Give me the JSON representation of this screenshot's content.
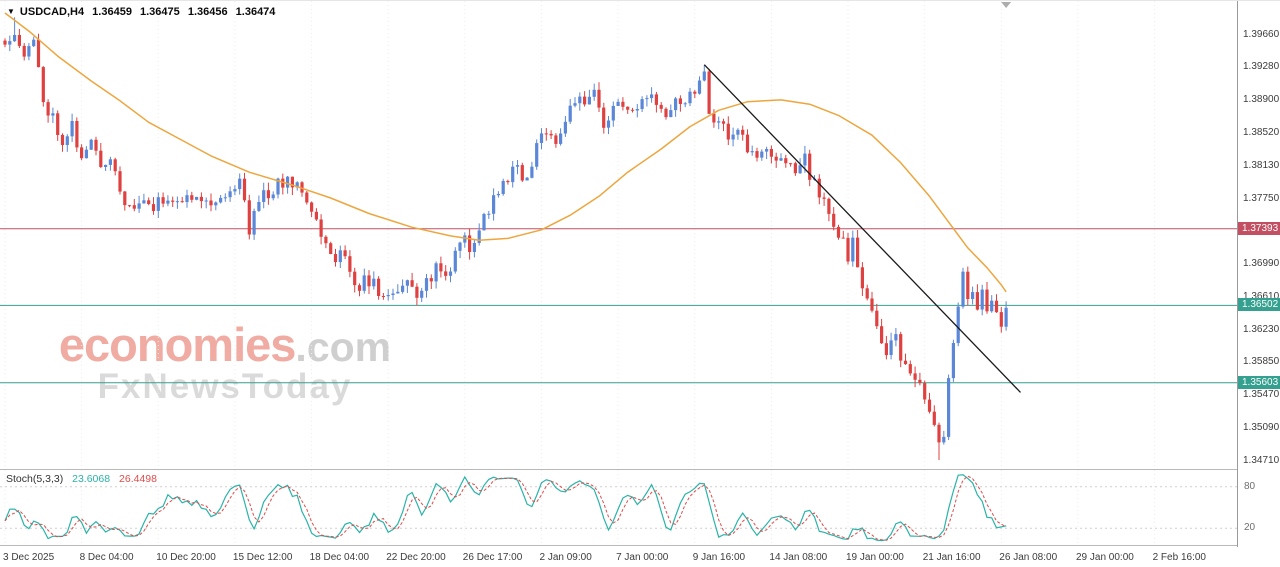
{
  "window": {
    "background": "#ffffff"
  },
  "quote_bar": {
    "dropdown_icon": "▼",
    "symbol_period": "USDCAD,H4",
    "open": "1.36459",
    "high": "1.36475",
    "low": "1.36456",
    "close": "1.36474"
  },
  "watermark": {
    "brand": "economies",
    "brand_suffix": ".com",
    "tagline": "FxNewsToday",
    "brand_color": "#f0aba2",
    "suffix_color": "#cfcfcf",
    "tagline_color": "#dadada"
  },
  "price_axis": {
    "ticks": [
      "1.39660",
      "1.39280",
      "1.38900",
      "1.38520",
      "1.38130",
      "1.37750",
      "1.36990",
      "1.36610",
      "1.36230",
      "1.35850",
      "1.35470",
      "1.35090",
      "1.34710"
    ],
    "badges": [
      {
        "label": "1.37393",
        "price": 1.37393,
        "color": "#c25062"
      },
      {
        "label": "1.36502",
        "price": 1.36502,
        "color": "#35a08f"
      },
      {
        "label": "1.35603",
        "price": 1.35603,
        "color": "#35a08f"
      }
    ]
  },
  "time_axis": {
    "labels": [
      "3 Dec 2025",
      "8 Dec 04:00",
      "10 Dec 20:00",
      "15 Dec 12:00",
      "18 Dec 04:00",
      "22 Dec 20:00",
      "26 Dec 17:00",
      "2 Jan 09:00",
      "7 Jan 00:00",
      "9 Jan 16:00",
      "14 Jan 08:00",
      "19 Jan 00:00",
      "21 Jan 16:00",
      "26 Jan 08:00",
      "29 Jan 00:00",
      "2 Feb 16:00"
    ],
    "candles_per_label": 16
  },
  "chart_data": {
    "type": "candlestick",
    "symbol": "USDCAD",
    "timeframe": "H4",
    "price_range": {
      "top": 1.4004,
      "bottom": 1.346
    },
    "candle_count": 210,
    "seed": 11,
    "noise": 0.0009,
    "up_color": "#5a87d7",
    "down_color": "#df4040",
    "ma_color": "#eda63e",
    "price_path": [
      [
        0,
        1.3958
      ],
      [
        2,
        1.3972
      ],
      [
        4,
        1.3942
      ],
      [
        6,
        1.3956
      ],
      [
        8,
        1.389
      ],
      [
        10,
        1.3868
      ],
      [
        12,
        1.3845
      ],
      [
        14,
        1.386
      ],
      [
        16,
        1.382
      ],
      [
        18,
        1.3838
      ],
      [
        20,
        1.3815
      ],
      [
        22,
        1.3824
      ],
      [
        24,
        1.3788
      ],
      [
        26,
        1.3758
      ],
      [
        28,
        1.3772
      ],
      [
        31,
        1.3762
      ],
      [
        34,
        1.3779
      ],
      [
        37,
        1.3768
      ],
      [
        40,
        1.3784
      ],
      [
        43,
        1.3768
      ],
      [
        46,
        1.3779
      ],
      [
        49,
        1.3795
      ],
      [
        51,
        1.374
      ],
      [
        53,
        1.3778
      ],
      [
        56,
        1.3784
      ],
      [
        59,
        1.3798
      ],
      [
        62,
        1.379
      ],
      [
        64,
        1.3762
      ],
      [
        66,
        1.3733
      ],
      [
        68,
        1.3704
      ],
      [
        70,
        1.3714
      ],
      [
        72,
        1.3686
      ],
      [
        74,
        1.3675
      ],
      [
        76,
        1.3681
      ],
      [
        79,
        1.3658
      ],
      [
        81,
        1.3668
      ],
      [
        84,
        1.3674
      ],
      [
        86,
        1.3663
      ],
      [
        88,
        1.368
      ],
      [
        90,
        1.3691
      ],
      [
        92,
        1.3686
      ],
      [
        94,
        1.3709
      ],
      [
        96,
        1.3726
      ],
      [
        98,
        1.3715
      ],
      [
        100,
        1.3755
      ],
      [
        102,
        1.3772
      ],
      [
        104,
        1.379
      ],
      [
        106,
        1.3813
      ],
      [
        109,
        1.3795
      ],
      [
        111,
        1.383
      ],
      [
        113,
        1.3858
      ],
      [
        115,
        1.3842
      ],
      [
        117,
        1.3865
      ],
      [
        119,
        1.3893
      ],
      [
        121,
        1.3877
      ],
      [
        123,
        1.3899
      ],
      [
        125,
        1.386
      ],
      [
        127,
        1.3877
      ],
      [
        129,
        1.3887
      ],
      [
        131,
        1.3871
      ],
      [
        133,
        1.3882
      ],
      [
        135,
        1.3889
      ],
      [
        138,
        1.3878
      ],
      [
        140,
        1.3893
      ],
      [
        142,
        1.3887
      ],
      [
        144,
        1.3905
      ],
      [
        146,
        1.3922
      ],
      [
        147,
        1.3877
      ],
      [
        149,
        1.3865
      ],
      [
        151,
        1.3848
      ],
      [
        153,
        1.3858
      ],
      [
        155,
        1.383
      ],
      [
        157,
        1.382
      ],
      [
        159,
        1.383
      ],
      [
        161,
        1.3813
      ],
      [
        163,
        1.3824
      ],
      [
        165,
        1.3807
      ],
      [
        167,
        1.3818
      ],
      [
        169,
        1.379
      ],
      [
        171,
        1.3772
      ],
      [
        173,
        1.3749
      ],
      [
        175,
        1.372
      ],
      [
        176,
        1.37
      ],
      [
        177,
        1.3722
      ],
      [
        179,
        1.367
      ],
      [
        181,
        1.364
      ],
      [
        183,
        1.3614
      ],
      [
        184,
        1.36
      ],
      [
        186,
        1.3608
      ],
      [
        188,
        1.358
      ],
      [
        190,
        1.3562
      ],
      [
        192,
        1.354
      ],
      [
        194,
        1.3506
      ],
      [
        195,
        1.3484
      ],
      [
        196,
        1.3497
      ],
      [
        197,
        1.356
      ],
      [
        198,
        1.3612
      ],
      [
        199,
        1.3654
      ],
      [
        200,
        1.3684
      ],
      [
        201,
        1.3662
      ],
      [
        202,
        1.3671
      ],
      [
        203,
        1.3652
      ],
      [
        204,
        1.3663
      ],
      [
        205,
        1.3646
      ],
      [
        206,
        1.3656
      ],
      [
        207,
        1.3642
      ],
      [
        208,
        1.3634
      ],
      [
        209,
        1.36474
      ]
    ],
    "forced_extremes": [
      {
        "i": 2,
        "high": 1.3985
      },
      {
        "i": 51,
        "low": 1.3727
      },
      {
        "i": 146,
        "high": 1.39295
      },
      {
        "i": 195,
        "low": 1.34705
      },
      {
        "i": 200,
        "high": 1.3694
      }
    ],
    "ma_path": [
      [
        0,
        1.399
      ],
      [
        5,
        1.3969
      ],
      [
        11,
        1.394
      ],
      [
        18,
        1.3911
      ],
      [
        24,
        1.3888
      ],
      [
        30,
        1.3863
      ],
      [
        37,
        1.3842
      ],
      [
        43,
        1.3824
      ],
      [
        51,
        1.3805
      ],
      [
        60,
        1.379
      ],
      [
        68,
        1.3775
      ],
      [
        76,
        1.3757
      ],
      [
        85,
        1.3741
      ],
      [
        93,
        1.3731
      ],
      [
        99,
        1.3726
      ],
      [
        105,
        1.3728
      ],
      [
        112,
        1.3738
      ],
      [
        118,
        1.3755
      ],
      [
        124,
        1.3777
      ],
      [
        130,
        1.3805
      ],
      [
        137,
        1.3832
      ],
      [
        143,
        1.3858
      ],
      [
        149,
        1.3877
      ],
      [
        155,
        1.3887
      ],
      [
        162,
        1.3889
      ],
      [
        168,
        1.3884
      ],
      [
        174,
        1.3871
      ],
      [
        181,
        1.3848
      ],
      [
        187,
        1.3816
      ],
      [
        193,
        1.3777
      ],
      [
        197,
        1.3747
      ],
      [
        201,
        1.3717
      ],
      [
        205,
        1.3694
      ],
      [
        208,
        1.3674
      ],
      [
        209,
        1.3666
      ]
    ],
    "trendline": {
      "from": [
        146,
        1.393
      ],
      "to": [
        212,
        1.3549
      ],
      "color": "#1a1a1a"
    },
    "hlines": [
      {
        "price": 1.37393,
        "color": "#c25062"
      },
      {
        "price": 1.36502,
        "color": "#35a08f"
      },
      {
        "price": 1.35603,
        "color": "#35a08f"
      }
    ],
    "stoch": {
      "label": "Stoch(5,3,3)",
      "main_value": "23.6068",
      "signal_value": "26.4498",
      "k": 5,
      "slowing": 3,
      "d": 3,
      "levels": [
        20,
        80
      ],
      "main_color": "#2ab3a9",
      "signal_color": "#df4b4b"
    }
  }
}
